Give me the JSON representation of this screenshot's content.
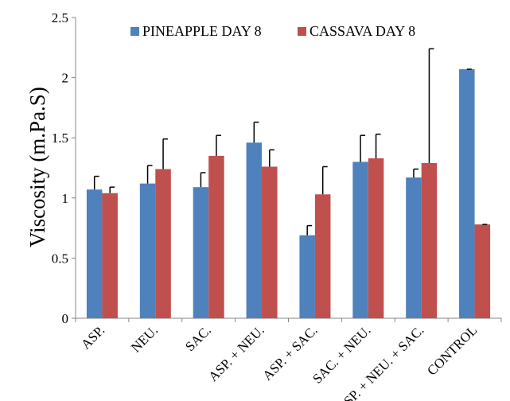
{
  "chart_data": {
    "type": "bar",
    "title": "",
    "xlabel": "",
    "ylabel": "Viscosity (m.Pa.S)",
    "ylim": [
      0,
      2.5
    ],
    "yticks": [
      "0",
      "0.5",
      "1",
      "1.5",
      "2",
      "2.5"
    ],
    "grid": false,
    "legend_position": "top",
    "error_bars": "upper",
    "categories": [
      "ASP.",
      "NEU.",
      "SAC.",
      "ASP. + NEU.",
      "ASP. + SAC.",
      "SAC. + NEU.",
      "ASP. + NEU. + SAC.",
      "CONTROL"
    ],
    "series": [
      {
        "name": "PINEAPPLE DAY 8",
        "color": "#4F81BD",
        "values": [
          1.07,
          1.12,
          1.09,
          1.46,
          0.69,
          1.3,
          1.17,
          2.07
        ],
        "error": [
          0.11,
          0.15,
          0.12,
          0.17,
          0.08,
          0.22,
          0.07,
          0.0
        ]
      },
      {
        "name": "CASSAVA DAY 8",
        "color": "#C0504D",
        "values": [
          1.04,
          1.24,
          1.35,
          1.26,
          1.03,
          1.33,
          1.29,
          0.78
        ],
        "error": [
          0.05,
          0.25,
          0.17,
          0.14,
          0.23,
          0.2,
          0.95,
          0.0
        ]
      }
    ]
  }
}
